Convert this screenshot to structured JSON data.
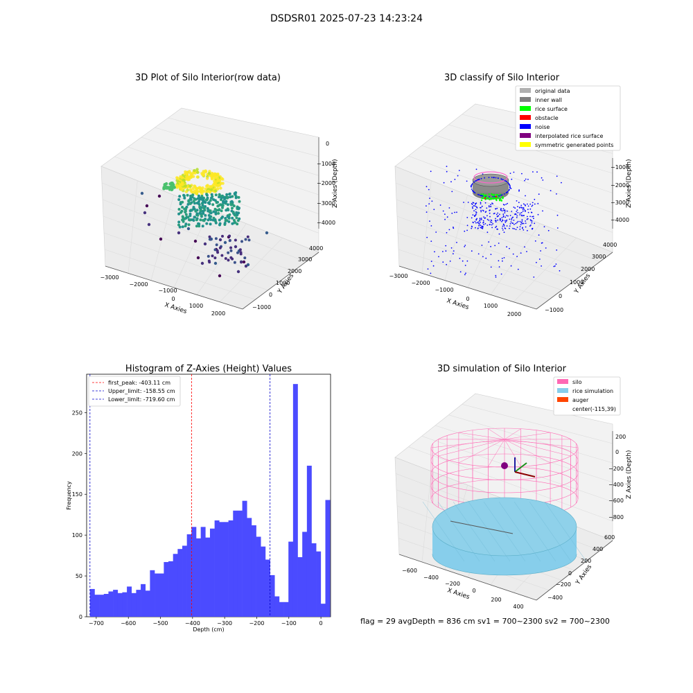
{
  "figure": {
    "suptitle": "DSDSR01 2025-07-23 14:23:24",
    "footer": "flag = 29  avgDepth = 836 cm  sv1 = 700~2300  sv2 = 700~2300"
  },
  "chart_data": [
    {
      "type": "scatter",
      "projection": "3d",
      "title": "3D Plot of Silo Interior(row data)",
      "xlabel": "X Axies",
      "ylabel": "Y Axies",
      "zlabel": "Z Axies (Depth)",
      "xticks": [
        "−3000",
        "−2000",
        "−1000",
        "0",
        "1000",
        "2000"
      ],
      "yticks": [
        "−1000",
        "0",
        "1000",
        "2000",
        "3000",
        "4000"
      ],
      "zticks": [
        "0",
        "−1000",
        "−2000",
        "−3000",
        "−4000"
      ],
      "xlim": [
        -3200,
        2600
      ],
      "ylim": [
        -1500,
        4500
      ],
      "zlim": [
        -4500,
        200
      ],
      "grid": true,
      "colormap": "viridis by depth",
      "colors": {
        "low": "#440154",
        "mid": "#21918c",
        "high": "#fde725"
      }
    },
    {
      "type": "scatter",
      "projection": "3d",
      "title": "3D classify of Silo Interior",
      "zlabel": "Z Axies (Depth)",
      "xlabel": "X Axies",
      "ylabel": "Y Axies",
      "xticks": [
        "−3000",
        "−2000",
        "−1000",
        "0",
        "1000",
        "2000"
      ],
      "yticks": [
        "−1000",
        "0",
        "1000",
        "2000",
        "3000",
        "4000"
      ],
      "zticks": [
        "−1000",
        "−2000",
        "−3000",
        "−4000"
      ],
      "legend_position": "top-right",
      "grid": true,
      "legend": [
        {
          "label": "original data",
          "color": "#b0b0b0"
        },
        {
          "label": "inner wall",
          "color": "#808080"
        },
        {
          "label": "rice surface",
          "color": "#00ff00"
        },
        {
          "label": "obstacle",
          "color": "#ff0000"
        },
        {
          "label": "noise",
          "color": "#0000ff"
        },
        {
          "label": "interpolated rice surface",
          "color": "#800080"
        },
        {
          "label": "symmetric generated points",
          "color": "#ffff00"
        }
      ]
    },
    {
      "type": "histogram",
      "title": "Histogram of Z-Axies (Height) Values",
      "xlabel": "Depth (cm)",
      "ylabel": "Frequency",
      "xlim": [
        -730,
        30
      ],
      "ylim": [
        0,
        297
      ],
      "xticks": [
        -700,
        -600,
        -500,
        -400,
        -300,
        -200,
        -100,
        0
      ],
      "yticks": [
        0,
        50,
        100,
        150,
        200,
        250
      ],
      "bar_color": "#4b4bff",
      "bin_start": -719.6,
      "bin_width": 14.38,
      "counts": [
        34,
        27,
        27,
        28,
        31,
        33,
        29,
        30,
        37,
        29,
        33,
        40,
        32,
        57,
        53,
        53,
        67,
        68,
        77,
        83,
        87,
        101,
        110,
        96,
        110,
        97,
        108,
        118,
        116,
        116,
        118,
        130,
        130,
        142,
        121,
        112,
        98,
        86,
        70,
        51,
        25,
        18,
        18,
        92,
        285,
        73,
        104,
        185,
        90,
        80,
        16,
        143
      ],
      "vlines": [
        {
          "label": "first_peak: -403.11 cm",
          "x": -403.11,
          "color": "#ff0000"
        },
        {
          "label": "Upper_limit: -158.55 cm",
          "x": -158.55,
          "color": "#0000cc"
        },
        {
          "label": "Lower_limit: -719.60 cm",
          "x": -719.6,
          "color": "#0000cc"
        }
      ],
      "legend_position": "top-left"
    },
    {
      "type": "wireframe",
      "projection": "3d",
      "title": "3D simulation of Silo Interior",
      "xlabel": "X Axies",
      "ylabel": "Y Axies",
      "zlabel": "Z Axies (Depth)",
      "xticks": [
        "−600",
        "−400",
        "−200",
        "0",
        "200",
        "400"
      ],
      "yticks": [
        "−400",
        "−200",
        "0",
        "200",
        "400",
        "600"
      ],
      "zticks": [
        "200",
        "0",
        "−200",
        "−400",
        "−600",
        "−800"
      ],
      "legend_position": "top-right",
      "grid": true,
      "legend": [
        {
          "label": "silo",
          "color": "#ff69b4"
        },
        {
          "label": "rice simulation",
          "color": "#87ceeb"
        },
        {
          "label": "auger",
          "color": "#ff4500"
        },
        {
          "label": "center(-115,39)",
          "color": ""
        }
      ],
      "center": [
        -115,
        39
      ]
    }
  ]
}
